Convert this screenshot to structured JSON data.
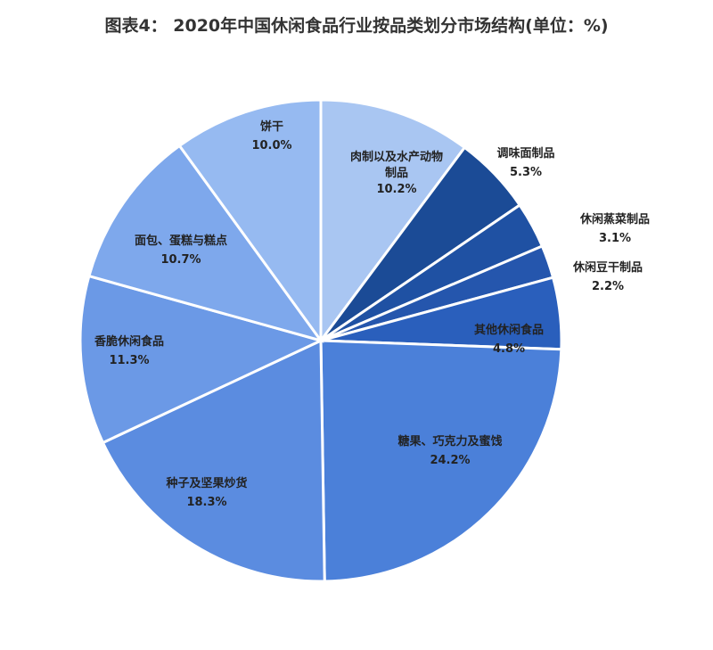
{
  "chart_data": {
    "type": "pie",
    "title": "图表4： 2020年中国休闲食品行业按品类划分市场结构(单位：%)",
    "categories": [
      "肉制以及水产动物制品",
      "调味面制品",
      "休闲蒸菜制品",
      "休闲豆干制品",
      "其他休闲食品",
      "糖果、巧克力及蜜饯",
      "种子及坚果炒货",
      "香脆休闲食品",
      "面包、蛋糕与糕点",
      "饼干"
    ],
    "values": [
      10.2,
      5.3,
      3.1,
      2.2,
      4.8,
      24.2,
      18.3,
      11.3,
      10.7,
      10.0
    ],
    "value_labels": [
      "10.2%",
      "5.3%",
      "3.1%",
      "2.2%",
      "4.8%",
      "24.2%",
      "18.3%",
      "11.3%",
      "10.7%",
      "10.0%"
    ],
    "colors": [
      "#a9c6f2",
      "#1b4b96",
      "#1f51a3",
      "#2556ad",
      "#2a5fbc",
      "#4b80d9",
      "#5b8ce0",
      "#6b99e6",
      "#7ea8ec",
      "#96baf1"
    ]
  }
}
